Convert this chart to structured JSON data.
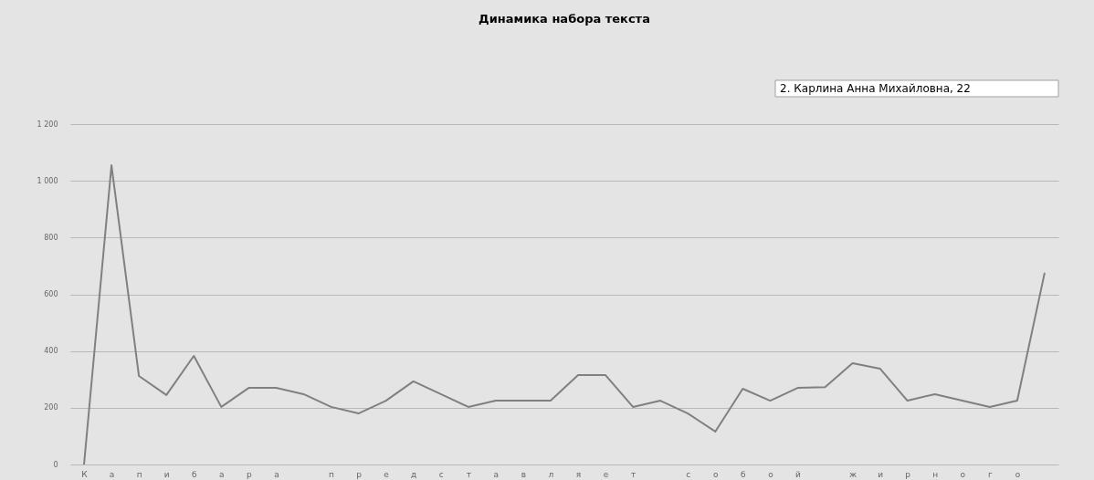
{
  "chart_data": {
    "type": "line",
    "title": "Динамика набора текста",
    "categories": [
      "К",
      "а",
      "п",
      "и",
      "б",
      "а",
      "р",
      "а",
      null,
      "п",
      "р",
      "е",
      "д",
      "с",
      "т",
      "а",
      "в",
      "л",
      "я",
      "е",
      "т",
      null,
      "с",
      "о",
      "б",
      "о",
      "й",
      null,
      "ж",
      "и",
      "р",
      "н",
      "о",
      "г",
      "о",
      null
    ],
    "series": [
      {
        "color": "#808080",
        "values": [
          0,
          1055,
          312,
          245,
          383,
          203,
          270,
          270,
          248,
          203,
          180,
          225,
          293,
          248,
          203,
          225,
          225,
          225,
          315,
          315,
          203,
          225,
          180,
          116,
          267,
          225,
          270,
          273,
          357,
          338,
          225,
          248,
          225,
          203,
          225,
          676
        ]
      }
    ],
    "ylim": [
      0,
      1200
    ],
    "yticks": [
      0,
      200,
      400,
      600,
      800,
      {
        "value": 1000,
        "label": "1 000"
      },
      {
        "value": 1200,
        "label": "1 200"
      }
    ],
    "grid": "y",
    "marker": "none",
    "line_style": "solid",
    "annotations": [
      "2. Карлина Анна Михайловна, 22"
    ]
  }
}
